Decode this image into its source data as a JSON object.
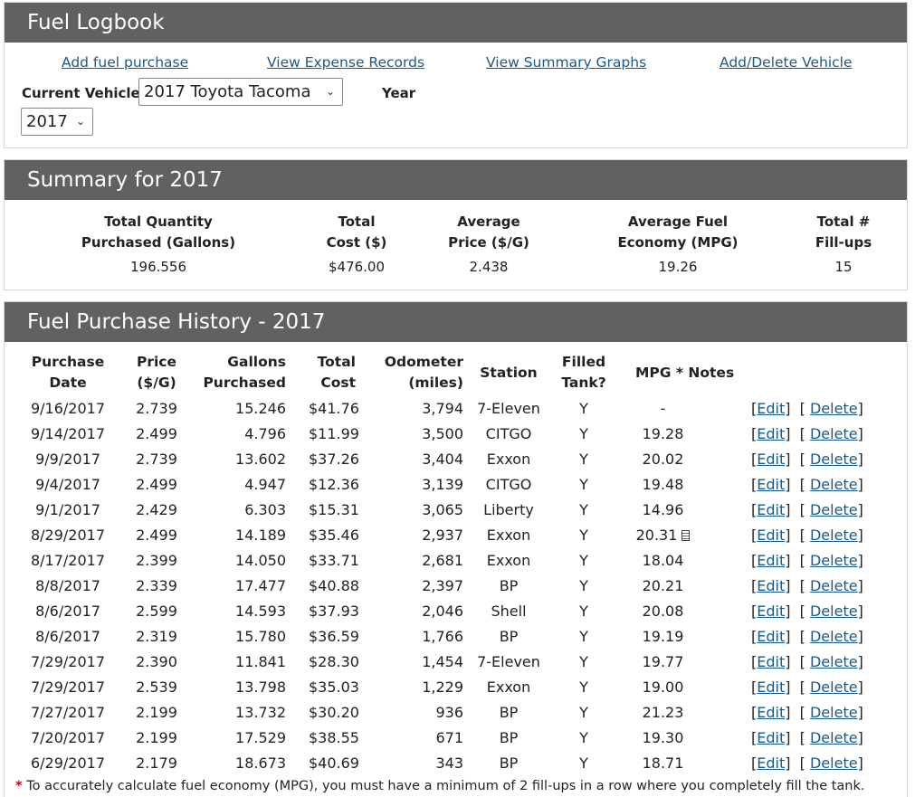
{
  "header": {
    "title": "Fuel Logbook"
  },
  "nav": {
    "add_fuel": "Add fuel purchase",
    "view_expense": "View Expense Records",
    "view_graphs": "View Summary Graphs",
    "add_delete_vehicle": "Add/Delete Vehicle"
  },
  "vehicle": {
    "label": "Current Vehicle",
    "value": "2017 Toyota Tacoma"
  },
  "year": {
    "label": "Year",
    "value": "2017"
  },
  "summary": {
    "title": "Summary for 2017",
    "headers": [
      "Total Quantity",
      "Purchased (Gallons)",
      "Total",
      "Cost ($)",
      "Average",
      "Price ($/G)",
      "Average Fuel",
      "Economy (MPG)",
      "Total #",
      "Fill-ups"
    ],
    "values": [
      "196.556",
      "$476.00",
      "2.438",
      "19.26",
      "15"
    ]
  },
  "history": {
    "title": "Fuel Purchase History - 2017",
    "columns": {
      "date1": "Purchase",
      "date2": "Date",
      "price1": "Price",
      "price2": "($/G)",
      "gallons1": "Gallons",
      "gallons2": "Purchased",
      "cost1": "Total",
      "cost2": "Cost",
      "odo1": "Odometer",
      "odo2": "(miles)",
      "station": "Station",
      "filled1": "Filled",
      "filled2": "Tank?",
      "mpg": "MPG * Notes"
    },
    "edit_label": "Edit",
    "delete_label": "Delete",
    "rows": [
      {
        "date": "9/16/2017",
        "price": "2.739",
        "gallons": "15.246",
        "cost": "$41.76",
        "odometer": "3,794",
        "station": "7-Eleven",
        "filled": "Y",
        "mpg": "-"
      },
      {
        "date": "9/14/2017",
        "price": "2.499",
        "gallons": "4.796",
        "cost": "$11.99",
        "odometer": "3,500",
        "station": "CITGO",
        "filled": "Y",
        "mpg": "19.28"
      },
      {
        "date": "9/9/2017",
        "price": "2.739",
        "gallons": "13.602",
        "cost": "$37.26",
        "odometer": "3,404",
        "station": "Exxon",
        "filled": "Y",
        "mpg": "20.02"
      },
      {
        "date": "9/4/2017",
        "price": "2.499",
        "gallons": "4.947",
        "cost": "$12.36",
        "odometer": "3,139",
        "station": "CITGO",
        "filled": "Y",
        "mpg": "19.48"
      },
      {
        "date": "9/1/2017",
        "price": "2.429",
        "gallons": "6.303",
        "cost": "$15.31",
        "odometer": "3,065",
        "station": "Liberty",
        "filled": "Y",
        "mpg": "14.96"
      },
      {
        "date": "8/29/2017",
        "price": "2.499",
        "gallons": "14.189",
        "cost": "$35.46",
        "odometer": "2,937",
        "station": "Exxon",
        "filled": "Y",
        "mpg": "20.31",
        "has_note": true
      },
      {
        "date": "8/17/2017",
        "price": "2.399",
        "gallons": "14.050",
        "cost": "$33.71",
        "odometer": "2,681",
        "station": "Exxon",
        "filled": "Y",
        "mpg": "18.04"
      },
      {
        "date": "8/8/2017",
        "price": "2.339",
        "gallons": "17.477",
        "cost": "$40.88",
        "odometer": "2,397",
        "station": "BP",
        "filled": "Y",
        "mpg": "20.21"
      },
      {
        "date": "8/6/2017",
        "price": "2.599",
        "gallons": "14.593",
        "cost": "$37.93",
        "odometer": "2,046",
        "station": "Shell",
        "filled": "Y",
        "mpg": "20.08"
      },
      {
        "date": "8/6/2017",
        "price": "2.319",
        "gallons": "15.780",
        "cost": "$36.59",
        "odometer": "1,766",
        "station": "BP",
        "filled": "Y",
        "mpg": "19.19"
      },
      {
        "date": "7/29/2017",
        "price": "2.390",
        "gallons": "11.841",
        "cost": "$28.30",
        "odometer": "1,454",
        "station": "7-Eleven",
        "filled": "Y",
        "mpg": "19.77"
      },
      {
        "date": "7/29/2017",
        "price": "2.539",
        "gallons": "13.798",
        "cost": "$35.03",
        "odometer": "1,229",
        "station": "Exxon",
        "filled": "Y",
        "mpg": "19.00"
      },
      {
        "date": "7/27/2017",
        "price": "2.199",
        "gallons": "13.732",
        "cost": "$30.20",
        "odometer": "936",
        "station": "BP",
        "filled": "Y",
        "mpg": "21.23"
      },
      {
        "date": "7/20/2017",
        "price": "2.199",
        "gallons": "17.529",
        "cost": "$38.55",
        "odometer": "671",
        "station": "BP",
        "filled": "Y",
        "mpg": "19.30"
      },
      {
        "date": "6/29/2017",
        "price": "2.179",
        "gallons": "18.673",
        "cost": "$40.69",
        "odometer": "343",
        "station": "BP",
        "filled": "Y",
        "mpg": "18.71"
      }
    ]
  },
  "footnote": {
    "star": "*",
    "text": "To accurately calculate fuel economy (MPG), you must have a minimum of 2 fill-ups in a row where you completely fill the tank."
  }
}
